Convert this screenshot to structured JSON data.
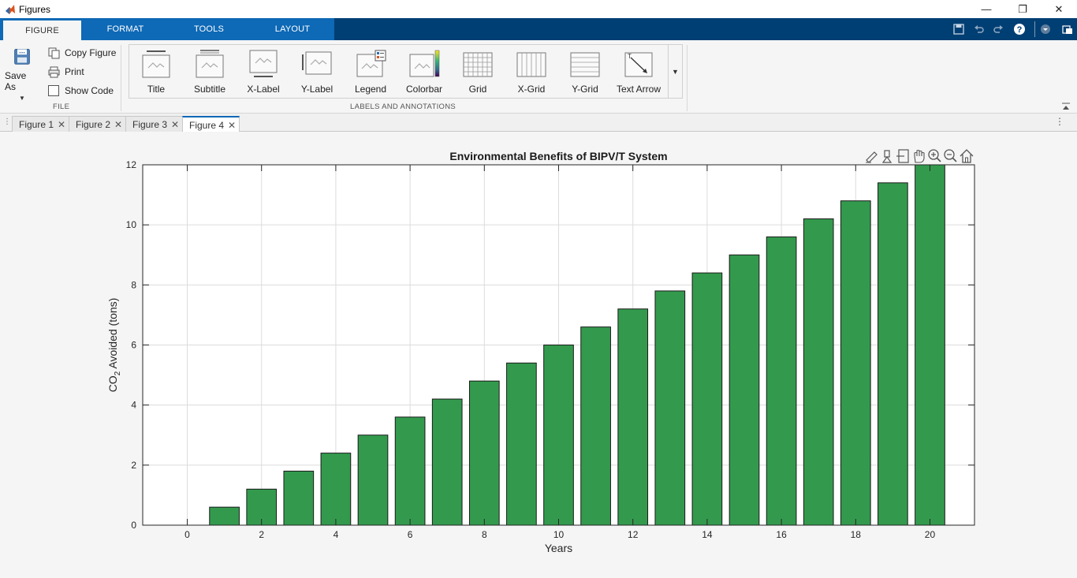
{
  "window": {
    "title": "Figures",
    "controls": [
      "minimize",
      "restore",
      "close"
    ]
  },
  "ribbon_tabs": [
    {
      "label": "FIGURE",
      "active": true
    },
    {
      "label": "FORMAT",
      "active": false
    },
    {
      "label": "TOOLS",
      "active": false
    },
    {
      "label": "LAYOUT",
      "active": false
    }
  ],
  "file_group": {
    "save_as_label": "Save As",
    "copy_figure_label": "Copy Figure",
    "print_label": "Print",
    "show_code_label": "Show Code",
    "show_code_checked": false,
    "group_label": "FILE"
  },
  "annotations_group": {
    "items": [
      "Title",
      "Subtitle",
      "X-Label",
      "Y-Label",
      "Legend",
      "Colorbar",
      "Grid",
      "X-Grid",
      "Y-Grid",
      "Text Arrow"
    ],
    "group_label": "LABELS AND ANNOTATIONS"
  },
  "figure_tabs": [
    {
      "label": "Figure 1",
      "active": false
    },
    {
      "label": "Figure 2",
      "active": false
    },
    {
      "label": "Figure 3",
      "active": false
    },
    {
      "label": "Figure 4",
      "active": true
    }
  ],
  "axes_toolbar_icons": [
    "brush-icon",
    "data-tips-icon",
    "restore-view-icon",
    "pan-icon",
    "zoom-in-icon",
    "zoom-out-icon",
    "home-icon"
  ],
  "colors": {
    "bar_fill": "#339a4d",
    "bar_edge": "#1a1a1a",
    "ribbon_tab_blue": "#0e69b6",
    "ribbon_dark": "#003f73",
    "grid": "#dcdcdc"
  },
  "chart_data": {
    "type": "bar",
    "title": "Environmental Benefits of BIPV/T System",
    "xlabel": "Years",
    "ylabel_main": "CO",
    "ylabel_sub": "2",
    "ylabel_rest": " Avoided  (tons)",
    "x": [
      1,
      2,
      3,
      4,
      5,
      6,
      7,
      8,
      9,
      10,
      11,
      12,
      13,
      14,
      15,
      16,
      17,
      18,
      19,
      20
    ],
    "values": [
      0.6,
      1.2,
      1.8,
      2.4,
      3.0,
      3.6,
      4.2,
      4.8,
      5.4,
      6.0,
      6.6,
      7.2,
      7.8,
      8.4,
      9.0,
      9.6,
      10.2,
      10.8,
      11.4,
      12.0
    ],
    "xlim": [
      -1.2,
      21.2
    ],
    "ylim": [
      0,
      12
    ],
    "xticks": [
      0,
      2,
      4,
      6,
      8,
      10,
      12,
      14,
      16,
      18,
      20
    ],
    "yticks": [
      0,
      2,
      4,
      6,
      8,
      10,
      12
    ],
    "grid": true
  }
}
